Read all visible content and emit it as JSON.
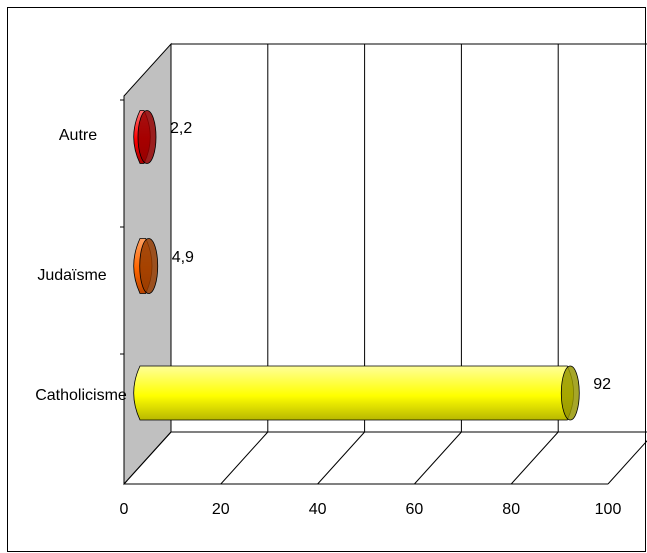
{
  "chart_data": {
    "type": "bar",
    "orientation": "horizontal",
    "style": "3d-cylinder",
    "categories": [
      "Catholicisme",
      "Judaïsme",
      "Autre"
    ],
    "values": [
      92,
      4.9,
      2.2
    ],
    "value_labels": [
      "92",
      "4,9",
      "2,2"
    ],
    "bar_colors": [
      "#FFFF00",
      "#FF6600",
      "#FF0000"
    ],
    "xlim": [
      0,
      100
    ],
    "xticks": [
      0,
      20,
      40,
      60,
      80,
      100
    ],
    "tick_labels": [
      "0",
      "20",
      "40",
      "60",
      "80",
      "100"
    ],
    "grid": true,
    "wall_color": "#C0C0C0",
    "title": "",
    "xlabel": "",
    "ylabel": ""
  }
}
